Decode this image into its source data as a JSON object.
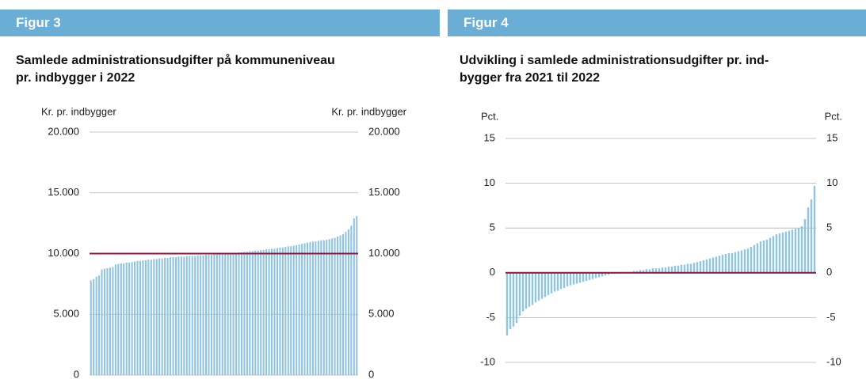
{
  "chart_data": [
    {
      "type": "bar",
      "figure": "Figur 3",
      "title": "Samlede administrationsudgifter på kommuneniveau\npr. indbygger i 2022",
      "y_label": "Kr. pr. indbygger",
      "y2_label": "Kr. pr. indbygger",
      "categories": [
        null,
        null,
        null,
        null,
        null,
        null,
        null,
        null,
        null,
        null,
        null,
        null,
        null,
        null,
        null,
        null,
        null,
        null,
        null,
        null,
        null,
        null,
        null,
        null,
        null,
        null,
        null,
        null,
        null,
        null,
        null,
        null,
        null,
        null,
        null,
        null,
        null,
        null,
        null,
        null,
        null,
        null,
        null,
        null,
        null,
        null,
        null,
        null,
        null,
        null,
        null,
        null,
        null,
        null,
        null,
        null,
        null,
        null,
        null,
        null,
        null,
        null,
        null,
        null,
        null,
        null,
        null,
        null,
        null,
        null,
        null,
        null,
        null,
        null,
        null,
        null,
        null,
        null,
        null,
        null,
        null,
        null,
        null,
        null,
        null,
        null,
        null,
        null,
        null,
        null,
        null,
        null,
        null,
        null,
        null,
        null,
        null,
        null
      ],
      "values": [
        7800,
        7900,
        8100,
        8200,
        8700,
        8750,
        8800,
        8850,
        8900,
        9100,
        9150,
        9200,
        9200,
        9250,
        9250,
        9300,
        9350,
        9400,
        9400,
        9450,
        9450,
        9500,
        9500,
        9550,
        9550,
        9600,
        9600,
        9650,
        9650,
        9700,
        9700,
        9700,
        9750,
        9750,
        9750,
        9800,
        9800,
        9800,
        9800,
        9850,
        9850,
        9850,
        9900,
        9900,
        9900,
        9950,
        9950,
        9950,
        9950,
        10000,
        10000,
        10000,
        10050,
        10050,
        10100,
        10100,
        10150,
        10150,
        10200,
        10200,
        10250,
        10250,
        10300,
        10300,
        10350,
        10350,
        10400,
        10400,
        10450,
        10500,
        10500,
        10550,
        10600,
        10600,
        10650,
        10700,
        10750,
        10800,
        10850,
        10900,
        10950,
        11000,
        11000,
        11050,
        11100,
        11100,
        11150,
        11200,
        11250,
        11300,
        11400,
        11500,
        11600,
        11800,
        12000,
        12300,
        12900,
        13100
      ],
      "color": "#8fc4e4",
      "reference_line": 10000,
      "reference_color": "#8b1538",
      "ylim": [
        0,
        20000
      ],
      "yticks": [
        {
          "value": 0,
          "label": "0"
        },
        {
          "value": 5000,
          "label": "5.000"
        },
        {
          "value": 10000,
          "label": "10.000"
        },
        {
          "value": 15000,
          "label": "15.000"
        },
        {
          "value": 20000,
          "label": "20.000"
        }
      ],
      "y2lim": [
        0,
        20000
      ],
      "y2ticks": [
        {
          "value": 0,
          "label": "0"
        },
        {
          "value": 5000,
          "label": "5.000"
        },
        {
          "value": 10000,
          "label": "10.000"
        },
        {
          "value": 15000,
          "label": "15.000"
        },
        {
          "value": 20000,
          "label": "20.000"
        }
      ],
      "grid": true
    },
    {
      "type": "bar",
      "figure": "Figur 4",
      "title": "Udvikling i samlede administrationsudgifter pr. ind-\nbygger fra 2021 til 2022",
      "y_label": "Pct.",
      "y2_label": "Pct.",
      "categories": [
        null,
        null,
        null,
        null,
        null,
        null,
        null,
        null,
        null,
        null,
        null,
        null,
        null,
        null,
        null,
        null,
        null,
        null,
        null,
        null,
        null,
        null,
        null,
        null,
        null,
        null,
        null,
        null,
        null,
        null,
        null,
        null,
        null,
        null,
        null,
        null,
        null,
        null,
        null,
        null,
        null,
        null,
        null,
        null,
        null,
        null,
        null,
        null,
        null,
        null,
        null,
        null,
        null,
        null,
        null,
        null,
        null,
        null,
        null,
        null,
        null,
        null,
        null,
        null,
        null,
        null,
        null,
        null,
        null,
        null,
        null,
        null,
        null,
        null,
        null,
        null,
        null,
        null,
        null,
        null,
        null,
        null,
        null,
        null,
        null,
        null,
        null,
        null,
        null,
        null,
        null,
        null,
        null,
        null,
        null,
        null,
        null,
        null
      ],
      "values": [
        -7.0,
        -6.3,
        -6.0,
        -5.6,
        -4.8,
        -4.3,
        -4.0,
        -3.8,
        -3.6,
        -3.3,
        -3.1,
        -2.9,
        -2.7,
        -2.5,
        -2.3,
        -2.1,
        -2.0,
        -1.8,
        -1.7,
        -1.5,
        -1.4,
        -1.3,
        -1.2,
        -1.1,
        -1.0,
        -0.9,
        -0.8,
        -0.7,
        -0.6,
        -0.5,
        -0.4,
        -0.3,
        -0.2,
        -0.1,
        -0.1,
        0,
        0,
        0,
        0.1,
        0.1,
        0.2,
        0.2,
        0.3,
        0.3,
        0.4,
        0.4,
        0.5,
        0.5,
        0.5,
        0.6,
        0.6,
        0.7,
        0.7,
        0.8,
        0.8,
        0.9,
        0.9,
        1.0,
        1.0,
        1.1,
        1.2,
        1.3,
        1.4,
        1.5,
        1.6,
        1.7,
        1.8,
        1.9,
        2.0,
        2.1,
        2.2,
        2.2,
        2.3,
        2.4,
        2.5,
        2.6,
        2.7,
        2.9,
        3.1,
        3.3,
        3.5,
        3.6,
        3.7,
        3.9,
        4.1,
        4.3,
        4.4,
        4.5,
        4.6,
        4.7,
        4.8,
        4.9,
        5.0,
        5.2,
        6.0,
        7.3,
        8.2,
        9.7
      ],
      "color": "#8fc4e4",
      "reference_line": 0,
      "reference_color": "#8b1538",
      "ylim": [
        -11,
        15
      ],
      "yticks": [
        -10,
        -5,
        0,
        5,
        10,
        15
      ],
      "y2lim": [
        -11,
        15
      ],
      "y2ticks": [
        -10,
        -5,
        0,
        5,
        10,
        15
      ],
      "grid": true
    }
  ]
}
